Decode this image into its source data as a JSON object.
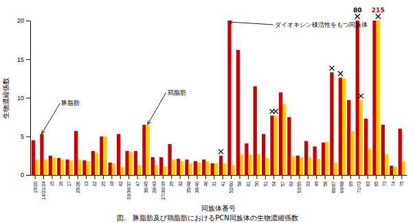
{
  "chart_data": {
    "type": "bar",
    "caption": "図.　豚脂肪及び鶏脂肪におけるPCN同族体の生物濃縮係数",
    "xlabel": "同族体番号",
    "ylabel": "生物濃縮係数",
    "categories": [
      "19/20",
      "14/21/24",
      "15",
      "16",
      "17",
      "25/26",
      "13",
      "22",
      "25",
      "18",
      "42",
      "33/34/37",
      "47",
      "36/45",
      "28/43",
      "27/30/39",
      "29",
      "32",
      "35/48",
      "38/40",
      "46",
      "31",
      "41",
      "52/60",
      "58",
      "61",
      "50",
      "51",
      "54",
      "57",
      "62",
      "53/55",
      "53",
      "49",
      "56",
      "66/67",
      "64/68",
      "69",
      "71/72",
      "63",
      "65",
      "73",
      "74",
      "75"
    ],
    "series": [
      {
        "color": "#cc0000",
        "values": [
          4.5,
          5.3,
          2.5,
          2.2,
          2.0,
          5.7,
          1.9,
          3.1,
          5.0,
          1.6,
          5.3,
          3.1,
          3.1,
          6.5,
          2.3,
          2.3,
          4.0,
          2.1,
          2.0,
          1.8,
          2.0,
          1.5,
          2.5,
          20.0,
          16.2,
          4.1,
          11.5,
          5.3,
          7.7,
          10.7,
          7.5,
          2.5,
          4.4,
          3.7,
          4.2,
          13.3,
          12.6,
          9.7,
          20.0,
          7.3,
          20.0,
          6.5,
          1.2,
          6.0
        ],
        "star_categories": [
          "41",
          "54",
          "66/67",
          "64/68",
          "71/72"
        ]
      },
      {
        "color": "#ffcc00",
        "values": [
          2.0,
          2.0,
          2.3,
          2.0,
          1.9,
          2.0,
          1.8,
          2.9,
          5.0,
          1.5,
          1.0,
          3.0,
          1.3,
          6.5,
          1.3,
          1.1,
          2.0,
          1.8,
          1.5,
          1.6,
          1.8,
          1.5,
          1.5,
          1.3,
          2.6,
          2.6,
          2.7,
          2.2,
          7.7,
          9.2,
          2.5,
          2.3,
          2.3,
          2.1,
          4.3,
          1.6,
          12.5,
          5.7,
          9.7,
          3.4,
          20.0,
          2.7,
          1.1,
          1.8
        ],
        "star_categories": [
          "54",
          "71/72",
          "65"
        ]
      }
    ],
    "annotations": [
      {
        "text": "豚脂肪",
        "category": "14/21/24",
        "series": 0
      },
      {
        "text": "鶏脂肪",
        "category": "36/45",
        "series": 1
      },
      {
        "text": "ダイオキシン様活性をもつ同族体",
        "category": "52/60",
        "series": 0
      }
    ],
    "bar_notes": [
      {
        "text": "80",
        "category": "71/72",
        "series": 0
      },
      {
        "text": "215",
        "category": "65",
        "series": 1,
        "color": "#cc0000"
      }
    ],
    "ylim": [
      0,
      20
    ],
    "yticks": [
      0,
      5,
      10,
      15,
      20
    ],
    "grid": false
  }
}
